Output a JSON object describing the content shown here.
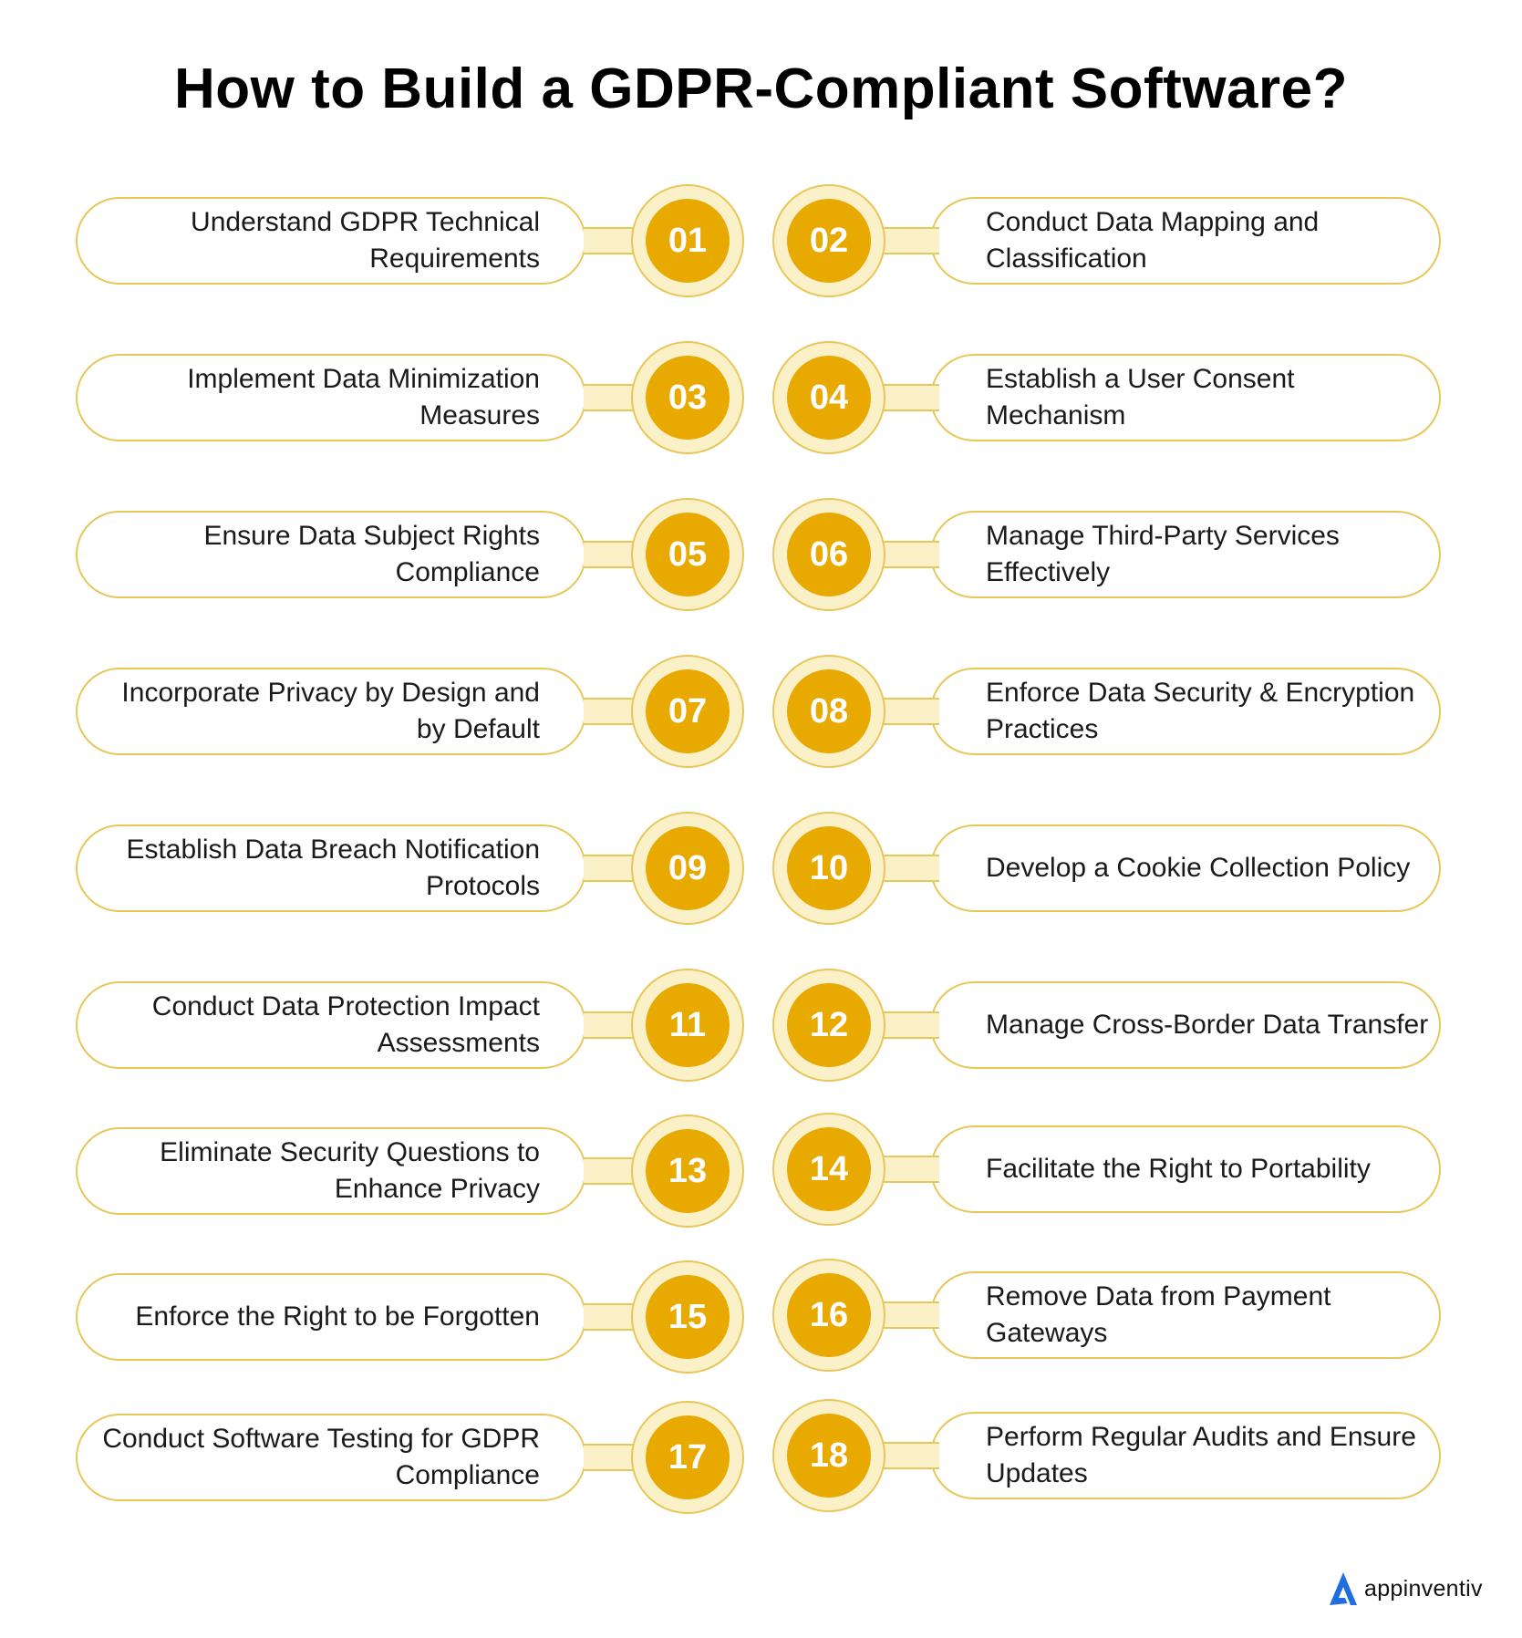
{
  "title": "How to Build a GDPR-Compliant Software?",
  "accent_color": "#e8a900",
  "border_color": "#e8c75a",
  "steps": [
    {
      "number": "01",
      "label": "Understand GDPR Technical Requirements"
    },
    {
      "number": "02",
      "label": "Conduct Data Mapping and Classification"
    },
    {
      "number": "03",
      "label": "Implement Data Minimization Measures"
    },
    {
      "number": "04",
      "label": "Establish a User Consent Mechanism"
    },
    {
      "number": "05",
      "label": "Ensure Data Subject Rights Compliance"
    },
    {
      "number": "06",
      "label": "Manage Third-Party Services Effectively"
    },
    {
      "number": "07",
      "label": "Incorporate Privacy by Design and by Default"
    },
    {
      "number": "08",
      "label": "Enforce Data Security & Encryption Practices"
    },
    {
      "number": "09",
      "label": "Establish Data Breach Notification Protocols"
    },
    {
      "number": "10",
      "label": "Develop a Cookie Collection Policy"
    },
    {
      "number": "11",
      "label": "Conduct Data Protection Impact Assessments"
    },
    {
      "number": "12",
      "label": "Manage Cross-Border Data Transfer"
    },
    {
      "number": "13",
      "label": "Eliminate Security Questions to Enhance Privacy"
    },
    {
      "number": "14",
      "label": "Facilitate the Right to Portability"
    },
    {
      "number": "15",
      "label": "Enforce the Right to be Forgotten"
    },
    {
      "number": "16",
      "label": "Remove Data from Payment Gateways"
    },
    {
      "number": "17",
      "label": "Conduct Software Testing for GDPR Compliance"
    },
    {
      "number": "18",
      "label": "Perform Regular Audits and Ensure Updates"
    }
  ],
  "logo": {
    "text": "appinventiv",
    "icon": "appinventiv-logo-icon"
  }
}
